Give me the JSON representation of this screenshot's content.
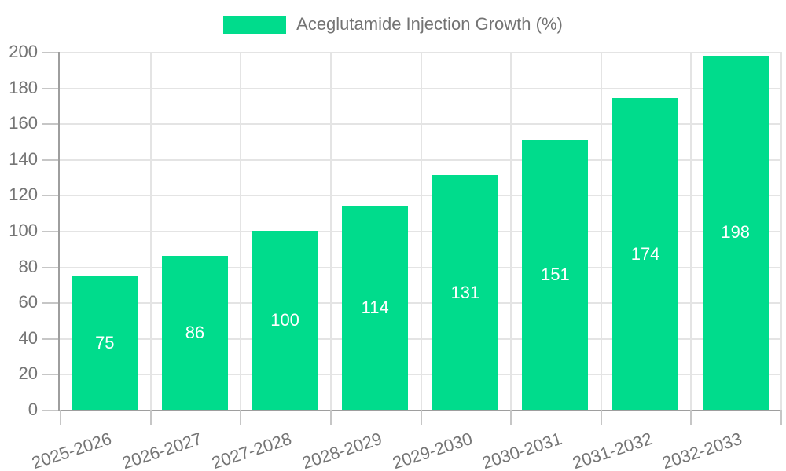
{
  "legend": {
    "label": "Aceglutamide Injection Growth (%)"
  },
  "colors": {
    "bar": "#00DC8C",
    "axis": "#9e9e9e",
    "tick": "#c6c6c6",
    "grid": "#e4e4e4",
    "text": "#757575",
    "bar_label": "#ffffff",
    "background": "#ffffff"
  },
  "chart_data": {
    "type": "bar",
    "title": "Aceglutamide Injection Growth (%)",
    "categories": [
      "2025-2026",
      "2026-2027",
      "2027-2028",
      "2028-2029",
      "2029-2030",
      "2030-2031",
      "2031-2032",
      "2032-2033"
    ],
    "values": [
      75,
      86,
      100,
      114,
      131,
      151,
      174,
      198
    ],
    "xlabel": "",
    "ylabel": "",
    "ylim": [
      0,
      200
    ],
    "y_ticks": [
      0,
      20,
      40,
      60,
      80,
      100,
      120,
      140,
      160,
      180,
      200
    ],
    "grid": true,
    "legend_position": "top",
    "bar_label_position": "center",
    "x_label_rotation_deg": -18
  }
}
